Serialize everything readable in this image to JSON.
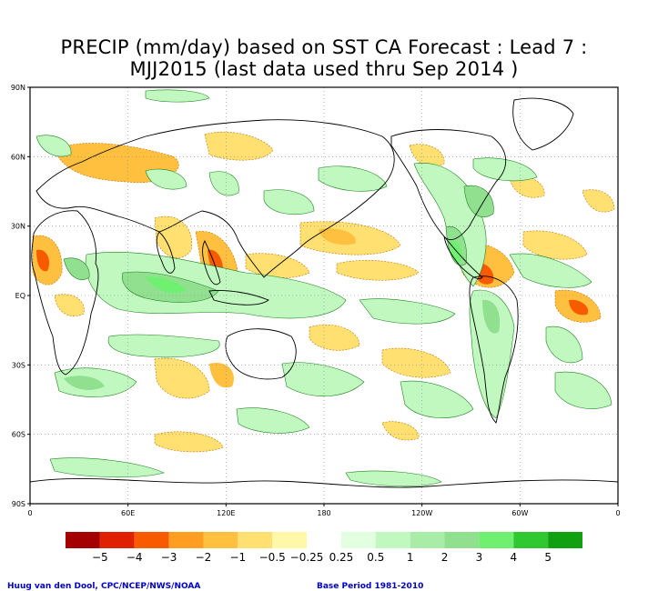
{
  "title_line1": "PRECIP (mm/day) based on SST CA Forecast : Lead 7 :",
  "title_line2": "MJJ2015 (last data used thru Sep 2014 )",
  "lat_labels": [
    "90N",
    "60N",
    "30N",
    "EQ",
    "30S",
    "60S",
    "90S"
  ],
  "lon_labels": [
    "0",
    "60E",
    "120E",
    "180",
    "120W",
    "60W",
    "0"
  ],
  "legend": {
    "bins": [
      {
        "color": "#a50000"
      },
      {
        "color": "#e02000"
      },
      {
        "color": "#f85a00"
      },
      {
        "color": "#ff9e20"
      },
      {
        "color": "#ffc040"
      },
      {
        "color": "#ffe070"
      },
      {
        "color": "#fff8a8"
      },
      {
        "color": "#ffffff"
      },
      {
        "color": "#e2ffe0"
      },
      {
        "color": "#c0f8c0"
      },
      {
        "color": "#a8eca8"
      },
      {
        "color": "#90e090"
      },
      {
        "color": "#70f070"
      },
      {
        "color": "#30c830"
      },
      {
        "color": "#10a010"
      }
    ],
    "labels": [
      "−5",
      "−4",
      "−3",
      "−2",
      "−1",
      "−0.5",
      "−0.25",
      "0.25",
      "0.5",
      "1",
      "2",
      "3",
      "4",
      "5"
    ]
  },
  "credit_left": "Huug van den Dool, CPC/NCEP/NWS/NOAA",
  "credit_right": "Base Period 1981-2010"
}
